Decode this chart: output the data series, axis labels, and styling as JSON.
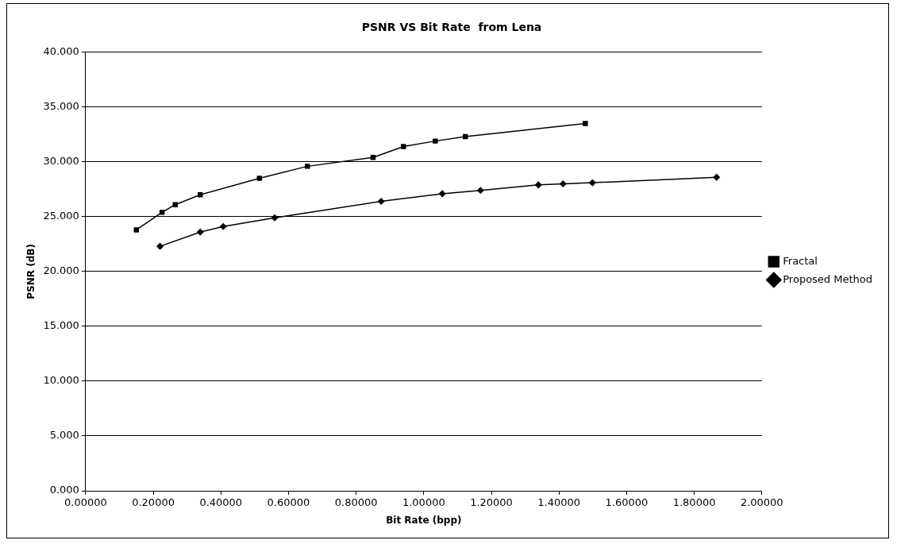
{
  "chart_data": {
    "type": "line",
    "title": "PSNR VS Bit Rate  from Lena",
    "xlabel": "Bit Rate (bpp)",
    "ylabel": "PSNR (dB)",
    "xlim": [
      0,
      2
    ],
    "xticks": [
      {
        "value": 0,
        "label": "0.00000"
      },
      {
        "value": 0.2,
        "label": "0.20000"
      },
      {
        "value": 0.4,
        "label": "0.40000"
      },
      {
        "value": 0.6,
        "label": "0.60000"
      },
      {
        "value": 0.8,
        "label": "0.80000"
      },
      {
        "value": 1,
        "label": "1.00000"
      },
      {
        "value": 1.2,
        "label": "1.20000"
      },
      {
        "value": 1.4,
        "label": "1.40000"
      },
      {
        "value": 1.6,
        "label": "1.60000"
      },
      {
        "value": 1.8,
        "label": "1.80000"
      },
      {
        "value": 2,
        "label": "2.00000"
      }
    ],
    "ylim": [
      0,
      40
    ],
    "yticks": [
      {
        "value": 0,
        "label": "0.000"
      },
      {
        "value": 5,
        "label": "5.000"
      },
      {
        "value": 10,
        "label": "10.000"
      },
      {
        "value": 15,
        "label": "15.000"
      },
      {
        "value": 20,
        "label": "20.000"
      },
      {
        "value": 25,
        "label": "25.000"
      },
      {
        "value": 30,
        "label": "30.000"
      },
      {
        "value": 35,
        "label": "35.000"
      },
      {
        "value": 40,
        "label": "40.000"
      }
    ],
    "grid": "y",
    "legend": "right",
    "series": [
      {
        "name": "Fractal",
        "color": "#000000",
        "marker": "square",
        "x": [
          0.15,
          0.226,
          0.265,
          0.339,
          0.514,
          0.656,
          0.85,
          0.94,
          1.034,
          1.123,
          1.478
        ],
        "values": [
          23.8,
          25.4,
          26.1,
          27.0,
          28.5,
          29.6,
          30.4,
          31.4,
          31.9,
          32.3,
          33.5
        ]
      },
      {
        "name": "Proposed Method",
        "color": "#000000",
        "marker": "diamond",
        "x": [
          0.22,
          0.339,
          0.407,
          0.559,
          0.874,
          1.055,
          1.168,
          1.339,
          1.412,
          1.499,
          1.866
        ],
        "values": [
          22.3,
          23.6,
          24.1,
          24.9,
          26.4,
          27.1,
          27.4,
          27.9,
          28.0,
          28.1,
          28.6
        ]
      }
    ]
  }
}
